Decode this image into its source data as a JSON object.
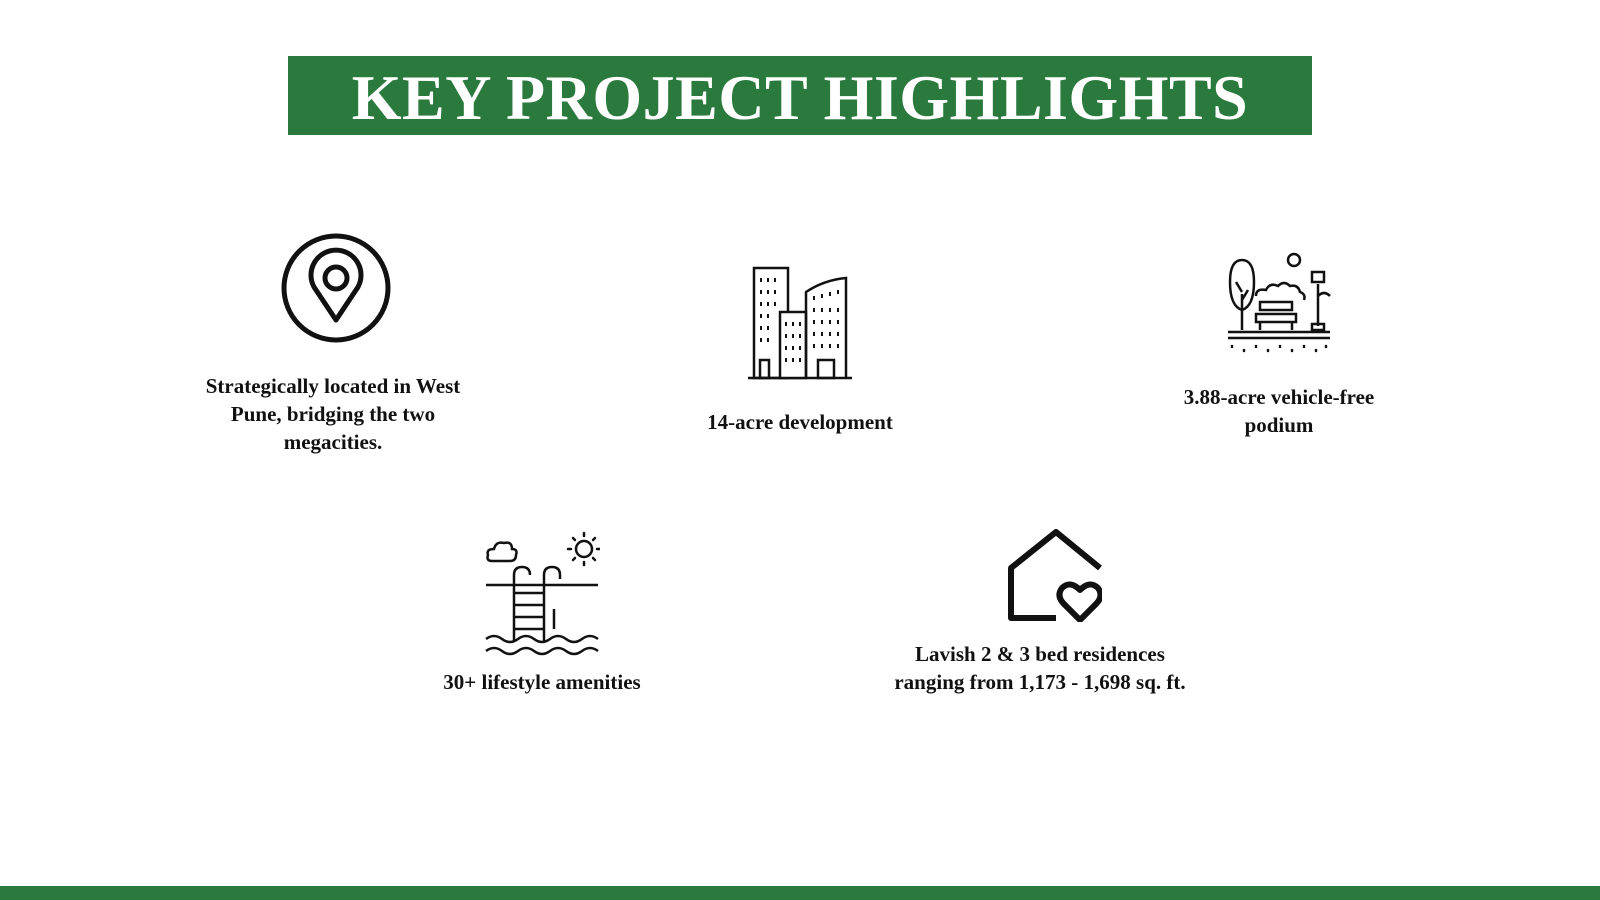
{
  "title": "KEY PROJECT HIGHLIGHTS",
  "colors": {
    "brand_green": "#2a7a3e",
    "text": "#111111",
    "background": "#ffffff"
  },
  "highlights": [
    {
      "icon": "location-pin-icon",
      "text": "Strategically located in West Pune, bridging the two megacities."
    },
    {
      "icon": "buildings-icon",
      "text": "14-acre development"
    },
    {
      "icon": "park-bench-icon",
      "text": "3.88-acre vehicle-free podium"
    },
    {
      "icon": "swimming-pool-icon",
      "text": "30+ lifestyle amenities"
    },
    {
      "icon": "home-heart-icon",
      "text": "Lavish 2 & 3 bed residences ranging from 1,173 - 1,698 sq. ft."
    }
  ]
}
